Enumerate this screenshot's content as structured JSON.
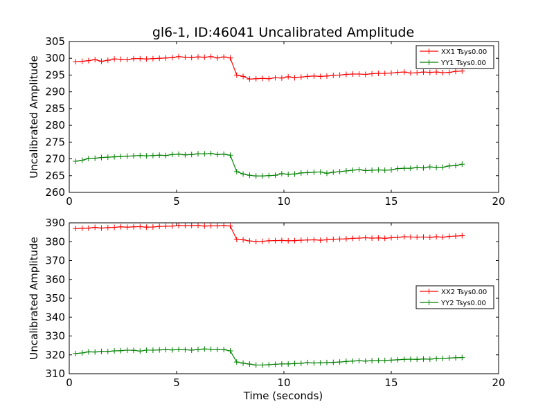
{
  "title": "gl6-1, ID:46041 Uncalibrated Amplitude",
  "xlabel": "Time (seconds)",
  "chart_data": [
    {
      "type": "line",
      "title": "gl6-1, ID:46041 Uncalibrated Amplitude",
      "xlabel": "",
      "ylabel": "Uncalibrated Amplitude",
      "xlim": [
        0,
        20
      ],
      "ylim": [
        260,
        305
      ],
      "xticks": [
        0,
        5,
        10,
        15,
        20
      ],
      "yticks": [
        260,
        265,
        270,
        275,
        280,
        285,
        290,
        295,
        300,
        305
      ],
      "grid": false,
      "legend_position": "top-right",
      "x": [
        0.3,
        0.6,
        0.9,
        1.2,
        1.5,
        1.8,
        2.1,
        2.4,
        2.7,
        3.0,
        3.3,
        3.6,
        3.9,
        4.2,
        4.5,
        4.8,
        5.1,
        5.4,
        5.7,
        6.0,
        6.3,
        6.6,
        6.9,
        7.2,
        7.5,
        7.8,
        8.1,
        8.4,
        8.7,
        9.0,
        9.3,
        9.6,
        9.9,
        10.2,
        10.5,
        10.8,
        11.1,
        11.4,
        11.7,
        12.0,
        12.3,
        12.6,
        12.9,
        13.2,
        13.5,
        13.8,
        14.1,
        14.4,
        14.7,
        15.0,
        15.3,
        15.6,
        15.9,
        16.2,
        16.5,
        16.8,
        17.1,
        17.4,
        17.7,
        18.0,
        18.3
      ],
      "series": [
        {
          "name": "XX1 Tsys0.00",
          "color": "#ff0000",
          "values": [
            299.0,
            299.1,
            299.3,
            299.6,
            299.1,
            299.4,
            299.8,
            299.7,
            299.6,
            299.9,
            299.9,
            299.8,
            299.9,
            300.0,
            300.1,
            300.2,
            300.5,
            300.3,
            300.2,
            300.4,
            300.3,
            300.5,
            300.1,
            300.4,
            300.1,
            295.0,
            294.6,
            293.8,
            293.9,
            294.0,
            293.9,
            294.2,
            294.1,
            294.5,
            294.2,
            294.4,
            294.6,
            294.7,
            294.6,
            294.7,
            294.9,
            295.0,
            295.2,
            295.3,
            295.3,
            295.2,
            295.4,
            295.5,
            295.5,
            295.6,
            295.8,
            295.9,
            295.6,
            295.7,
            295.9,
            295.8,
            295.9,
            295.7,
            295.8,
            296.1,
            296.2
          ]
        },
        {
          "name": "YY1 Tsys0.00",
          "color": "#008000",
          "values": [
            269.3,
            269.6,
            270.1,
            270.2,
            270.4,
            270.5,
            270.6,
            270.7,
            270.8,
            270.9,
            271.0,
            270.9,
            271.0,
            271.1,
            271.0,
            271.3,
            271.4,
            271.2,
            271.3,
            271.5,
            271.5,
            271.6,
            271.3,
            271.4,
            271.1,
            266.2,
            265.5,
            265.1,
            264.9,
            264.9,
            265.0,
            265.1,
            265.6,
            265.4,
            265.5,
            265.8,
            265.9,
            266.0,
            266.1,
            265.7,
            266.0,
            266.2,
            266.4,
            266.6,
            266.8,
            266.5,
            266.6,
            266.7,
            266.6,
            266.7,
            267.1,
            267.2,
            267.2,
            267.4,
            267.3,
            267.6,
            267.4,
            267.5,
            267.9,
            268.0,
            268.4
          ]
        }
      ]
    },
    {
      "type": "line",
      "title": "",
      "xlabel": "Time (seconds)",
      "ylabel": "Uncalibrated Amplitude",
      "xlim": [
        0,
        20
      ],
      "ylim": [
        310,
        390
      ],
      "xticks": [
        0,
        5,
        10,
        15,
        20
      ],
      "yticks": [
        310,
        320,
        330,
        340,
        350,
        360,
        370,
        380,
        390
      ],
      "grid": false,
      "legend_position": "center-right",
      "x": [
        0.3,
        0.6,
        0.9,
        1.2,
        1.5,
        1.8,
        2.1,
        2.4,
        2.7,
        3.0,
        3.3,
        3.6,
        3.9,
        4.2,
        4.5,
        4.8,
        5.1,
        5.4,
        5.7,
        6.0,
        6.3,
        6.6,
        6.9,
        7.2,
        7.5,
        7.8,
        8.1,
        8.4,
        8.7,
        9.0,
        9.3,
        9.6,
        9.9,
        10.2,
        10.5,
        10.8,
        11.1,
        11.4,
        11.7,
        12.0,
        12.3,
        12.6,
        12.9,
        13.2,
        13.5,
        13.8,
        14.1,
        14.4,
        14.7,
        15.0,
        15.3,
        15.6,
        15.9,
        16.2,
        16.5,
        16.8,
        17.1,
        17.4,
        17.7,
        18.0,
        18.3
      ],
      "series": [
        {
          "name": "XX2 Tsys0.00",
          "color": "#ff0000",
          "values": [
            387.0,
            387.1,
            387.2,
            387.6,
            387.2,
            387.5,
            387.6,
            387.9,
            387.7,
            387.9,
            388.0,
            387.7,
            387.8,
            388.1,
            388.2,
            388.3,
            388.6,
            388.5,
            388.6,
            388.6,
            388.3,
            388.4,
            388.4,
            388.6,
            388.3,
            381.2,
            381.0,
            380.4,
            380.0,
            380.2,
            380.5,
            380.6,
            380.7,
            380.5,
            380.6,
            380.8,
            380.9,
            381.0,
            380.8,
            381.0,
            381.3,
            381.4,
            381.5,
            381.8,
            381.9,
            382.1,
            381.9,
            382.0,
            381.8,
            382.1,
            382.3,
            382.6,
            382.5,
            382.4,
            382.5,
            382.3,
            382.6,
            382.4,
            382.8,
            383.0,
            383.2
          ]
        },
        {
          "name": "YY2 Tsys0.00",
          "color": "#008000",
          "values": [
            320.7,
            321.0,
            321.6,
            321.5,
            321.8,
            321.8,
            322.1,
            322.2,
            322.5,
            322.4,
            322.0,
            322.5,
            322.5,
            322.6,
            322.8,
            322.6,
            322.9,
            322.7,
            322.5,
            322.9,
            323.1,
            323.0,
            322.9,
            322.8,
            322.1,
            316.2,
            315.6,
            315.1,
            314.6,
            314.6,
            314.8,
            315.0,
            315.2,
            315.2,
            315.4,
            315.5,
            315.9,
            315.7,
            315.8,
            315.9,
            316.0,
            316.2,
            316.5,
            316.7,
            316.9,
            316.7,
            316.9,
            317.0,
            317.0,
            317.2,
            317.4,
            317.6,
            317.7,
            317.6,
            317.8,
            317.7,
            318.0,
            318.1,
            318.3,
            318.5,
            318.6
          ]
        }
      ]
    }
  ]
}
